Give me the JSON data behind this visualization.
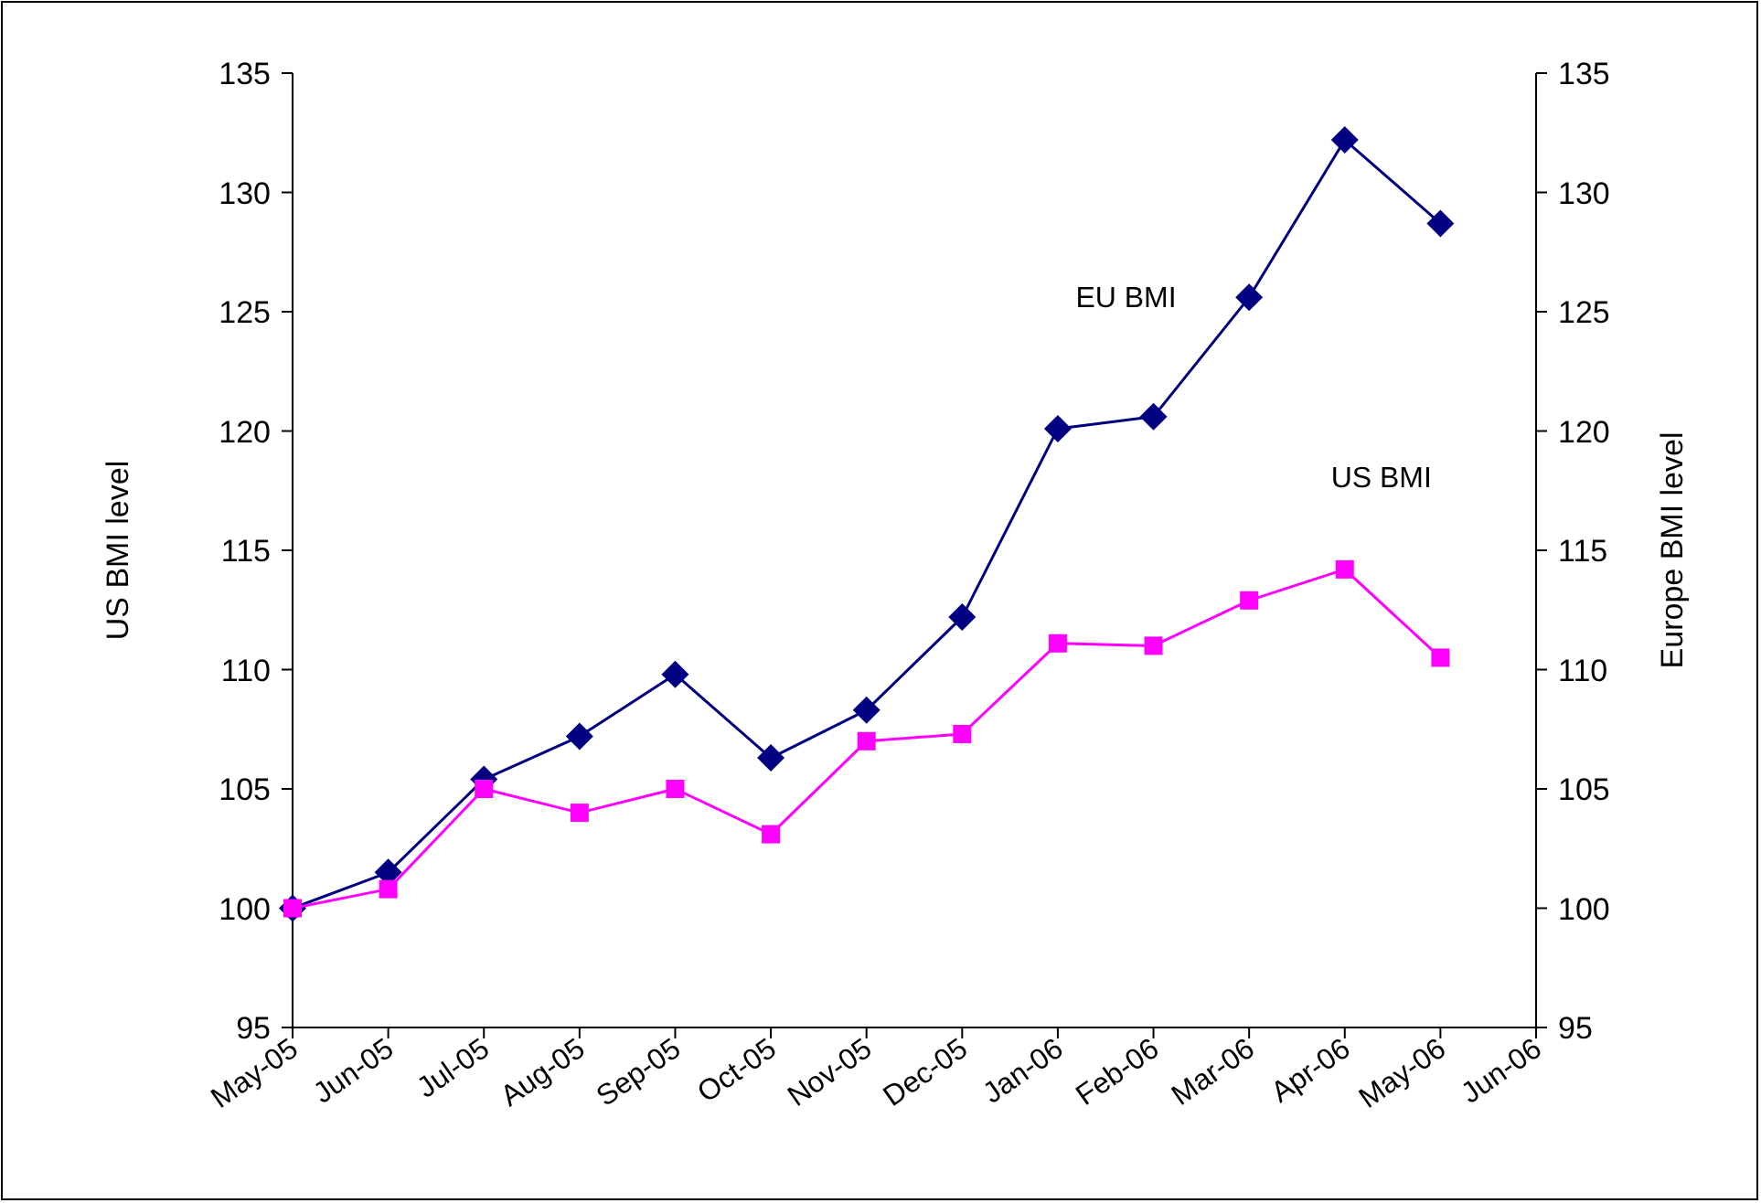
{
  "chart_data": {
    "type": "line",
    "categories": [
      "May-05",
      "Jun-05",
      "Jul-05",
      "Aug-05",
      "Sep-05",
      "Oct-05",
      "Nov-05",
      "Dec-05",
      "Jan-06",
      "Feb-06",
      "Mar-06",
      "Apr-06",
      "May-06",
      "Jun-06"
    ],
    "ylabel": "US BMI level",
    "y2label": "Europe BMI level",
    "ylim": [
      95,
      135
    ],
    "yticks": [
      95,
      100,
      105,
      110,
      115,
      120,
      125,
      130,
      135
    ],
    "y2lim": [
      95,
      135
    ],
    "y2ticks": [
      95,
      100,
      105,
      110,
      115,
      120,
      125,
      130,
      135
    ],
    "grid": false,
    "line_style": "solid",
    "series": [
      {
        "name": "EU BMI",
        "color": "#000080",
        "marker": "diamond",
        "values": [
          100,
          101.5,
          105.4,
          107.2,
          109.8,
          106.3,
          108.3,
          112.2,
          120.1,
          120.6,
          125.6,
          132.2,
          128.7,
          null
        ]
      },
      {
        "name": "US BMI",
        "color": "#ff00ff",
        "marker": "square",
        "values": [
          100,
          100.8,
          105,
          104,
          105,
          103.1,
          107,
          107.3,
          111.1,
          111,
          112.9,
          114.2,
          110.5,
          null
        ]
      }
    ]
  }
}
